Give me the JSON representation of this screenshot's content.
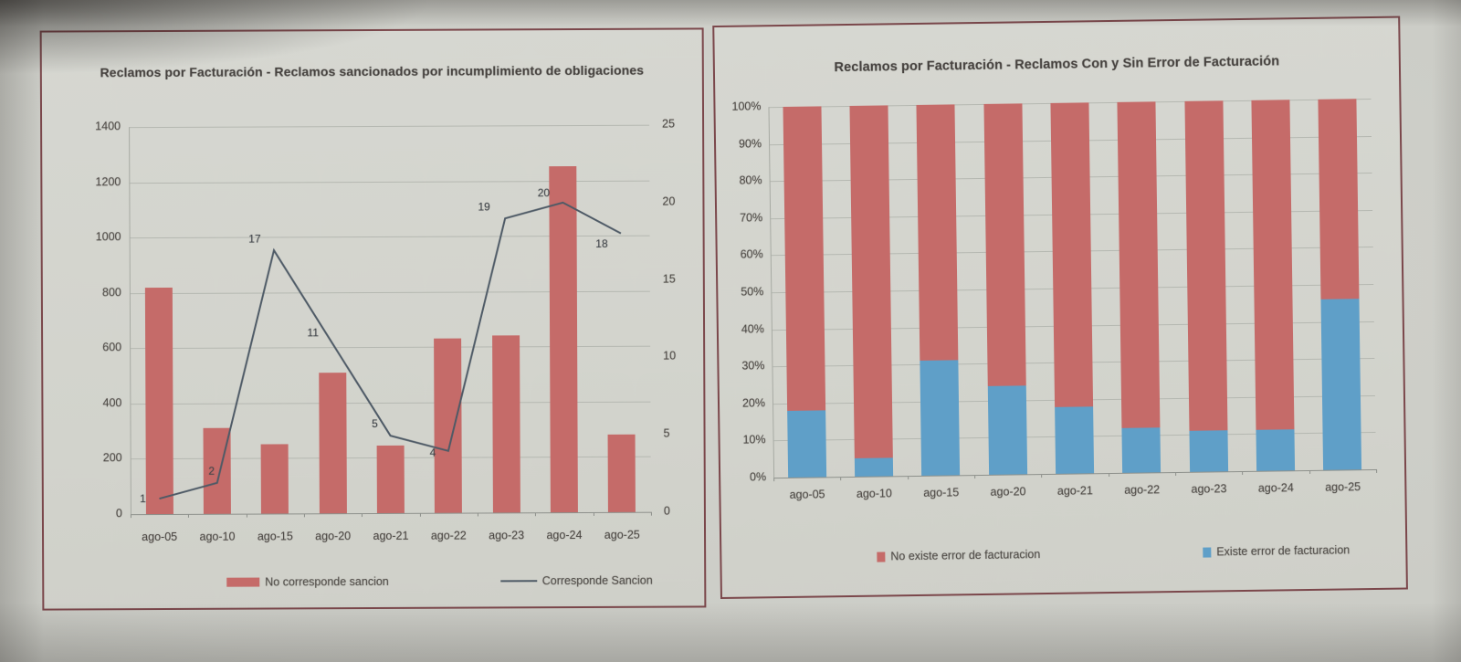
{
  "photo": {
    "paper_color": "#d3d4ce",
    "frame_color": "#7b474b"
  },
  "chart_data": [
    {
      "type": "bar+line",
      "title": "Reclamos por Facturación - Reclamos sancionados por incumplimiento de obligaciones",
      "categories": [
        "ago-05",
        "ago-10",
        "ago-15",
        "ago-20",
        "ago-21",
        "ago-22",
        "ago-23",
        "ago-24",
        "ago-25"
      ],
      "bar_series": {
        "name": "No corresponde sancion",
        "color": "#c56b69",
        "axis": "left",
        "values": [
          820,
          310,
          250,
          510,
          245,
          630,
          640,
          1250,
          280
        ]
      },
      "line_series": {
        "name": "Corresponde Sancion",
        "color": "#4e5a66",
        "axis": "right",
        "values": [
          1,
          2,
          17,
          11,
          5,
          4,
          19,
          20,
          18
        ],
        "point_labels": [
          "1",
          "2",
          "17",
          "11",
          "5",
          "4",
          "19",
          "20",
          "18"
        ]
      },
      "left_axis": {
        "min": 0,
        "max": 1400,
        "step": 200,
        "ticks": [
          "1400",
          "1200",
          "1000",
          "800",
          "600",
          "400",
          "200",
          "0"
        ]
      },
      "right_axis": {
        "min": 0,
        "max": 25,
        "step": 5,
        "ticks": [
          "25",
          "20",
          "15",
          "10",
          "5",
          "0"
        ]
      },
      "grid": true,
      "legend_position": "bottom"
    },
    {
      "type": "stacked-bar-100",
      "title": "Reclamos por Facturación - Reclamos Con y Sin Error de Facturación",
      "categories": [
        "ago-05",
        "ago-10",
        "ago-15",
        "ago-20",
        "ago-21",
        "ago-22",
        "ago-23",
        "ago-24",
        "ago-25"
      ],
      "series": [
        {
          "name": "No existe error de facturacion",
          "color": "#c56b69",
          "stack": "top",
          "values": [
            82,
            95,
            69,
            76,
            82,
            88,
            89,
            89,
            54
          ]
        },
        {
          "name": "Existe error de facturacion",
          "color": "#5f9fc8",
          "stack": "bottom",
          "values": [
            18,
            5,
            31,
            24,
            18,
            12,
            11,
            11,
            46
          ]
        }
      ],
      "y_axis": {
        "min": 0,
        "max": 100,
        "step": 10,
        "format": "percent",
        "ticks": [
          "100%",
          "90%",
          "80%",
          "70%",
          "60%",
          "50%",
          "40%",
          "30%",
          "20%",
          "10%",
          "0%"
        ]
      },
      "grid": true,
      "legend_position": "bottom"
    }
  ]
}
